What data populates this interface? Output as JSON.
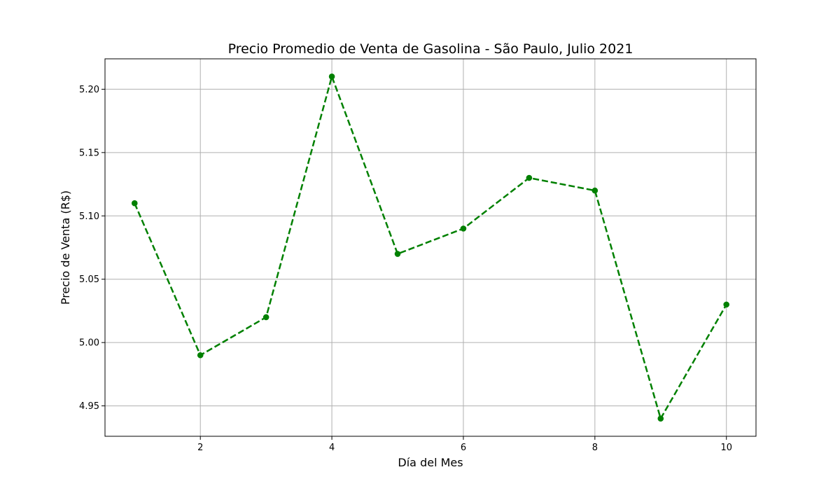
{
  "chart_data": {
    "type": "line",
    "title": "Precio Promedio de Venta de Gasolina - São Paulo, Julio 2021",
    "xlabel": "Día del Mes",
    "ylabel": "Precio de Venta (R$)",
    "x": [
      1,
      2,
      3,
      4,
      5,
      6,
      7,
      8,
      9,
      10
    ],
    "series": [
      {
        "values": [
          5.11,
          4.99,
          5.02,
          5.21,
          5.07,
          5.09,
          5.13,
          5.12,
          4.94,
          5.03
        ],
        "color": "#008000",
        "line_style": "dashed",
        "marker": "circle"
      }
    ],
    "xlim": [
      0.55,
      10.45
    ],
    "ylim": [
      4.926,
      5.224
    ],
    "x_ticks": [
      2,
      4,
      6,
      8,
      10
    ],
    "x_tick_labels": [
      "2",
      "4",
      "6",
      "8",
      "10"
    ],
    "y_ticks": [
      4.95,
      5.0,
      5.05,
      5.1,
      5.15,
      5.2
    ],
    "y_tick_labels": [
      "4.95",
      "5.00",
      "5.05",
      "5.10",
      "5.15",
      "5.20"
    ],
    "grid": true,
    "legend": false
  }
}
